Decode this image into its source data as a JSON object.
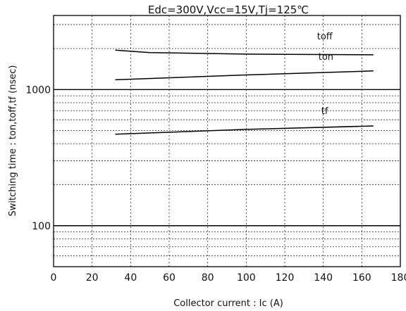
{
  "chart_data": {
    "type": "line",
    "title": "Edc=300V,Vcc=15V,Tj=125℃",
    "xlabel": "Collector current : Ic (A)",
    "ylabel": "Switching time : ton,toff,tf (nsec)",
    "xlim": [
      0,
      180
    ],
    "ylim": [
      50,
      3500
    ],
    "yscale": "log",
    "x_ticks": [
      0,
      20,
      40,
      60,
      80,
      100,
      120,
      140,
      160,
      180
    ],
    "x_tick_labels": [
      "0",
      "20",
      "40",
      "60",
      "80",
      "100",
      "120",
      "140",
      "160",
      "180"
    ],
    "y_ticks": [
      100,
      1000
    ],
    "y_tick_labels": [
      "100",
      "1000"
    ],
    "grid": true,
    "series": [
      {
        "name": "toff",
        "x": [
          32,
          50,
          100,
          166
        ],
        "y": [
          1950,
          1870,
          1820,
          1800
        ]
      },
      {
        "name": "ton",
        "x": [
          32,
          100,
          166
        ],
        "y": [
          1180,
          1280,
          1370
        ]
      },
      {
        "name": "tf",
        "x": [
          32,
          100,
          166
        ],
        "y": [
          470,
          510,
          540
        ]
      }
    ]
  }
}
